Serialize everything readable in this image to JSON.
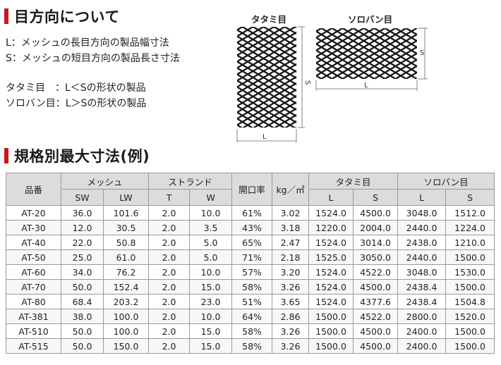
{
  "section1": {
    "title": "目方向について"
  },
  "descriptions": {
    "L": "L：メッシュの長目方向の製品幅寸法",
    "S": "S：メッシュの短目方向の製品長さ寸法",
    "tatami": "タタミ目　：L＜Sの形状の製品",
    "soroban": "ソロバン目：L＞Sの形状の製品"
  },
  "diagrams": {
    "tatami": {
      "label": "タタミ目",
      "dim_s": "S",
      "dim_l": "L"
    },
    "soroban": {
      "label": "ソロバン目",
      "dim_s": "S",
      "dim_l": "L"
    }
  },
  "section2": {
    "title": "規格別最大寸法(例)"
  },
  "table": {
    "headers": {
      "product": "品番",
      "mesh": "メッシュ",
      "strand": "ストランド",
      "opening": "開口率",
      "weight": "kg／㎡",
      "tatami": "タタミ目",
      "soroban": "ソロバン目",
      "sw": "SW",
      "lw": "LW",
      "t": "T",
      "w": "W",
      "tatami_l": "L",
      "tatami_s": "S",
      "soroban_l": "L",
      "soroban_s": "S"
    },
    "rows": [
      [
        "AT-20",
        "36.0",
        "101.6",
        "2.0",
        "10.0",
        "61%",
        "3.02",
        "1524.0",
        "4500.0",
        "3048.0",
        "1512.0"
      ],
      [
        "AT-30",
        "12.0",
        "30.5",
        "2.0",
        "3.5",
        "43%",
        "3.18",
        "1220.0",
        "2004.0",
        "2440.0",
        "1224.0"
      ],
      [
        "AT-40",
        "22.0",
        "50.8",
        "2.0",
        "5.0",
        "65%",
        "2.47",
        "1524.0",
        "3014.0",
        "2438.0",
        "1210.0"
      ],
      [
        "AT-50",
        "25.0",
        "61.0",
        "2.0",
        "5.0",
        "71%",
        "2.18",
        "1525.0",
        "3050.0",
        "2440.0",
        "1500.0"
      ],
      [
        "AT-60",
        "34.0",
        "76.2",
        "2.0",
        "10.0",
        "57%",
        "3.20",
        "1524.0",
        "4522.0",
        "3048.0",
        "1530.0"
      ],
      [
        "AT-70",
        "50.0",
        "152.4",
        "2.0",
        "15.0",
        "58%",
        "3.26",
        "1524.0",
        "4500.0",
        "2438.4",
        "1500.0"
      ],
      [
        "AT-80",
        "68.4",
        "203.2",
        "2.0",
        "23.0",
        "51%",
        "3.65",
        "1524.0",
        "4377.6",
        "2438.4",
        "1504.8"
      ],
      [
        "AT-381",
        "38.0",
        "100.0",
        "2.0",
        "10.0",
        "64%",
        "2.86",
        "1500.0",
        "4522.0",
        "2800.0",
        "1520.0"
      ],
      [
        "AT-510",
        "50.0",
        "100.0",
        "2.0",
        "15.0",
        "58%",
        "3.26",
        "1500.0",
        "4500.0",
        "2400.0",
        "1500.0"
      ],
      [
        "AT-515",
        "50.0",
        "150.0",
        "2.0",
        "15.0",
        "58%",
        "3.26",
        "1500.0",
        "4500.0",
        "2400.0",
        "1500.0"
      ]
    ]
  }
}
